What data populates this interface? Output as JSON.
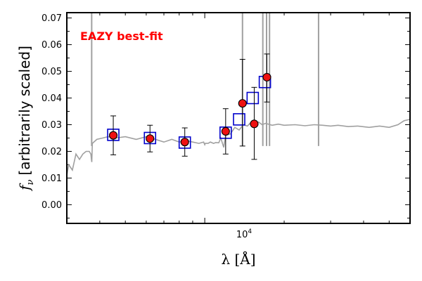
{
  "chart_data": {
    "type": "scatter",
    "title": "",
    "annotation": "EAZY best-fit",
    "annotation_color": "#ff0000",
    "xlabel": "λ [Å]",
    "xscale": "log",
    "xlim": [
      3000,
      60000
    ],
    "x_tick_label": {
      "base": "10",
      "exponent": "4",
      "value": 10000
    },
    "ylabel": "fν [arbitrarily scaled]",
    "ylabel_symbol": "f",
    "ylabel_sub": "ν",
    "ylabel_text": "[arbitrarily scaled]",
    "ylim": [
      -0.007,
      0.072
    ],
    "yticks": [
      "0.00",
      "0.01",
      "0.02",
      "0.03",
      "0.04",
      "0.05",
      "0.06",
      "0.07"
    ],
    "grid": false,
    "colors": {
      "model": "#a0a0a0",
      "template_marker": "#0000cc",
      "obs_fill": "#ee1111",
      "obs_edge": "#000000",
      "errorbar": "#000000"
    },
    "series": [
      {
        "type": "line",
        "role": "template spectrum",
        "x": [
          3000,
          3050,
          3150,
          3250,
          3350,
          3450,
          3550,
          3650,
          3700,
          3720,
          3730,
          3750,
          3900,
          4100,
          4300,
          4600,
          5000,
          5500,
          6000,
          6500,
          7000,
          7500,
          8000,
          8500,
          9000,
          9500,
          9900,
          10000,
          10050,
          10300,
          10500,
          10800,
          11000,
          11300,
          11500,
          11800,
          12000,
          12500,
          13000,
          13500,
          14000,
          14500,
          15000,
          15500,
          16000,
          16500,
          17000,
          18000,
          19000,
          20000,
          22000,
          24000,
          26000,
          28000,
          30000,
          32000,
          35000,
          38000,
          42000,
          46000,
          50000,
          54000,
          57000,
          60000
        ],
        "y": [
          0.011,
          0.015,
          0.013,
          0.019,
          0.017,
          0.019,
          0.02,
          0.02,
          0.019,
          0.017,
          0.016,
          0.023,
          0.0245,
          0.025,
          0.0255,
          0.025,
          0.0255,
          0.0245,
          0.0255,
          0.0245,
          0.0235,
          0.0245,
          0.0235,
          0.024,
          0.0235,
          0.023,
          0.0235,
          0.0225,
          0.023,
          0.023,
          0.0235,
          0.023,
          0.0233,
          0.0232,
          0.025,
          0.0215,
          0.026,
          0.0265,
          0.029,
          0.028,
          0.03,
          0.0295,
          0.031,
          0.03,
          0.031,
          0.03,
          0.0305,
          0.0298,
          0.0302,
          0.0298,
          0.03,
          0.0296,
          0.03,
          0.0298,
          0.0295,
          0.0298,
          0.0293,
          0.0295,
          0.029,
          0.0295,
          0.029,
          0.03,
          0.0315,
          0.032
        ],
        "emission_lines": [
          3727,
          13900,
          16600,
          17150,
          17600,
          27000
        ]
      },
      {
        "type": "markers",
        "role": "template photometry",
        "marker": "square",
        "x": [
          4500,
          6200,
          8400,
          12000,
          13500,
          15200,
          16900
        ],
        "y": [
          0.0262,
          0.025,
          0.0233,
          0.027,
          0.032,
          0.04,
          0.046
        ]
      },
      {
        "type": "errorbar",
        "role": "observed photometry",
        "marker": "circle",
        "x": [
          4500,
          6200,
          8400,
          12000,
          13900,
          15400,
          17200
        ],
        "y": [
          0.026,
          0.0248,
          0.0235,
          0.0275,
          0.038,
          0.0303,
          0.0478
        ],
        "err_low": [
          0.0073,
          0.005,
          0.0053,
          0.0085,
          0.016,
          0.0133,
          0.0093
        ],
        "err_high": [
          0.0073,
          0.005,
          0.0053,
          0.0085,
          0.0165,
          0.0137,
          0.0087
        ]
      }
    ]
  }
}
